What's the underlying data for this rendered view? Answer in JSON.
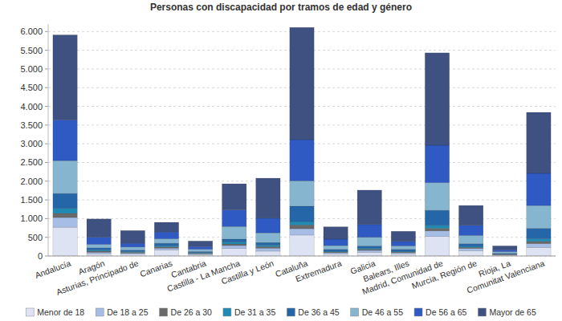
{
  "chart_data": {
    "type": "bar",
    "title": "Personas con discapacidad por tramos de edad y género",
    "stacked": true,
    "grid": true,
    "legend": "bottom",
    "categories": [
      "Andalucía",
      "Aragón",
      "Asturias, Principado de",
      "Canarias",
      "Cantabria",
      "Castilla - La Mancha",
      "Castilla y León",
      "Cataluña",
      "Extremadura",
      "Galicia",
      "Balears, Illes",
      "Madrid, Comunidad de",
      "Murcia, Región de",
      "Rioja, La",
      "Comunitat Valenciana"
    ],
    "ylim": [
      0,
      6200
    ],
    "yticks": [
      0,
      500,
      {
        "value": 1000,
        "label": "1.000"
      },
      {
        "value": 1500,
        "label": "1.500"
      },
      {
        "value": 2000,
        "label": "2.000"
      },
      {
        "value": 2500,
        "label": "2.500"
      },
      {
        "value": 3000,
        "label": "3.000"
      },
      {
        "value": 3500,
        "label": "3.500"
      },
      {
        "value": 4000,
        "label": "4.000"
      },
      {
        "value": 4500,
        "label": "4.500"
      },
      {
        "value": 5000,
        "label": "5.000"
      },
      {
        "value": 5500,
        "label": "5.500"
      },
      {
        "value": 6000,
        "label": "6.000"
      }
    ],
    "series": [
      {
        "name": "Menor de 18",
        "color": "#dde3f3",
        "values": [
          770,
          60,
          50,
          160,
          40,
          200,
          130,
          560,
          60,
          100,
          60,
          520,
          140,
          20,
          230
        ]
      },
      {
        "name": "De 18 a 25",
        "color": "#a6bde6",
        "values": [
          260,
          40,
          30,
          50,
          20,
          80,
          80,
          170,
          30,
          50,
          30,
          150,
          60,
          15,
          100
        ]
      },
      {
        "name": "De 26 a 30",
        "color": "#6a6a6a",
        "values": [
          110,
          30,
          20,
          30,
          15,
          40,
          40,
          100,
          20,
          30,
          20,
          70,
          30,
          10,
          60
        ]
      },
      {
        "name": "De 31 a 35",
        "color": "#1f8bb5",
        "values": [
          130,
          30,
          20,
          30,
          15,
          50,
          40,
          90,
          20,
          30,
          20,
          80,
          30,
          10,
          70
        ]
      },
      {
        "name": "De 36 a 45",
        "color": "#2566a8",
        "values": [
          400,
          60,
          40,
          70,
          30,
          80,
          70,
          410,
          50,
          60,
          50,
          400,
          70,
          20,
          280
        ]
      },
      {
        "name": "De 46 a 55",
        "color": "#86b5cf",
        "values": [
          880,
          90,
          80,
          120,
          60,
          340,
          260,
          680,
          100,
          230,
          90,
          740,
          220,
          40,
          610
        ]
      },
      {
        "name": "De 56 a 65",
        "color": "#2f5ac4",
        "values": [
          1090,
          190,
          100,
          180,
          70,
          440,
          390,
          1100,
          170,
          340,
          120,
          1000,
          270,
          50,
          860
        ]
      },
      {
        "name": "Mayor de 65",
        "color": "#3f5181",
        "values": [
          2270,
          490,
          340,
          260,
          150,
          700,
          1070,
          3000,
          330,
          920,
          270,
          2470,
          530,
          105,
          1630
        ]
      }
    ]
  }
}
